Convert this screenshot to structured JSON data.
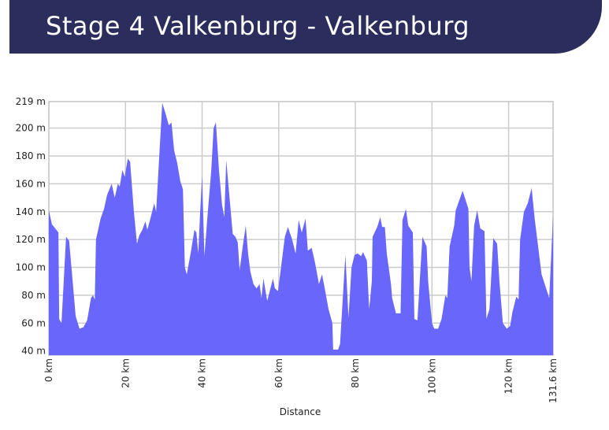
{
  "header": {
    "title": "Stage 4 Valkenburg - Valkenburg"
  },
  "chart_data": {
    "type": "area",
    "color": "#6966fb",
    "grid": true,
    "x_label": "Distance",
    "x": [
      0,
      0.8,
      2.5,
      2.7,
      3.3,
      4.5,
      5.3,
      7,
      8,
      9,
      10,
      11,
      11.5,
      12,
      12.3,
      13.5,
      14.4,
      15.2,
      16.4,
      17.2,
      18,
      18.5,
      19.2,
      19.8,
      20.6,
      21.2,
      22.2,
      23,
      23.6,
      24.4,
      25.2,
      25.7,
      26.5,
      27.5,
      28,
      29.6,
      30.5,
      31.3,
      32,
      32.7,
      33.5,
      34.3,
      35,
      35.5,
      36,
      37,
      38,
      38.5,
      39,
      39.5,
      40,
      40.6,
      41.5,
      42.4,
      43,
      43.6,
      44.4,
      45.2,
      45.8,
      46.3,
      47,
      48,
      48.7,
      49.3,
      49.8,
      50.6,
      51.4,
      52,
      52.6,
      53.4,
      54.2,
      55,
      55.5,
      56,
      57,
      58.5,
      59,
      59.8,
      60.6,
      61.6,
      62.4,
      63.5,
      64.4,
      65.2,
      66,
      67,
      67.6,
      68.6,
      69.5,
      70.5,
      71.3,
      72,
      73,
      74,
      74.2,
      75.5,
      76,
      77.4,
      78.2,
      79,
      79.8,
      80.6,
      81.5,
      82,
      83,
      83.6,
      84.3,
      84.5,
      85.7,
      86.5,
      87,
      87.7,
      88.2,
      89.3,
      89.6,
      90.6,
      91.8,
      92.3,
      93.2,
      93.8,
      95,
      95.4,
      96.2,
      97.5,
      98.6,
      99,
      100,
      100.6,
      101.6,
      102.5,
      103.5,
      104,
      104.6,
      105.8,
      106.2,
      108,
      109.5,
      109.8,
      110.3,
      111,
      111.8,
      112.6,
      113.7,
      114.2,
      115,
      116,
      117,
      117.6,
      118.5,
      119.5,
      120.4,
      121,
      122,
      122.6,
      123,
      124,
      125,
      126,
      126.8,
      128.6,
      130.6,
      131.6
    ],
    "values": [
      141,
      131,
      125,
      63,
      60,
      122,
      119,
      65,
      56,
      57,
      62,
      78,
      80,
      77,
      120,
      135,
      142,
      152,
      160,
      150,
      160,
      158,
      170,
      165,
      178,
      176,
      140,
      117,
      123,
      127,
      133,
      127,
      135,
      146,
      140,
      218,
      210,
      202,
      204,
      184,
      175,
      162,
      156,
      100,
      95,
      110,
      127,
      125,
      110,
      140,
      166,
      108,
      140,
      170,
      200,
      204,
      170,
      145,
      136,
      177,
      155,
      124,
      122,
      118,
      98,
      115,
      130,
      110,
      97,
      88,
      85,
      88,
      78,
      92,
      76,
      92,
      85,
      83,
      100,
      122,
      129,
      120,
      110,
      134,
      125,
      135,
      112,
      114,
      103,
      88,
      95,
      85,
      70,
      60,
      41,
      41,
      45,
      109,
      64,
      100,
      109,
      110,
      108,
      111,
      105,
      70,
      90,
      122,
      129,
      136,
      129,
      129,
      110,
      88,
      78,
      67,
      67,
      134,
      142,
      130,
      125,
      63,
      62,
      122,
      115,
      90,
      60,
      56,
      56,
      63,
      80,
      78,
      115,
      130,
      141,
      155,
      142,
      100,
      90,
      130,
      141,
      128,
      126,
      63,
      70,
      121,
      117,
      90,
      60,
      56,
      58,
      68,
      79,
      77,
      120,
      140,
      146,
      157,
      135,
      95,
      78,
      137
    ],
    "xlim": [
      0,
      131.6
    ],
    "xticks": [
      {
        "value": 0,
        "label": "0 km"
      },
      {
        "value": 20,
        "label": "20 km"
      },
      {
        "value": 40,
        "label": "40 km"
      },
      {
        "value": 60,
        "label": "60 km"
      },
      {
        "value": 80,
        "label": "80 km"
      },
      {
        "value": 100,
        "label": "100 km"
      },
      {
        "value": 120,
        "label": "120 km"
      },
      {
        "value": 131.6,
        "label": "131.6 km"
      }
    ],
    "ylim": [
      37,
      219
    ],
    "yticks": [
      {
        "value": 40,
        "label": "40 m"
      },
      {
        "value": 60,
        "label": "60 m"
      },
      {
        "value": 80,
        "label": "80 m"
      },
      {
        "value": 100,
        "label": "100 m"
      },
      {
        "value": 120,
        "label": "120 m"
      },
      {
        "value": 140,
        "label": "140 m"
      },
      {
        "value": 160,
        "label": "160 m"
      },
      {
        "value": 180,
        "label": "180 m"
      },
      {
        "value": 200,
        "label": "200 m"
      },
      {
        "value": 219,
        "label": "219 m"
      }
    ]
  }
}
